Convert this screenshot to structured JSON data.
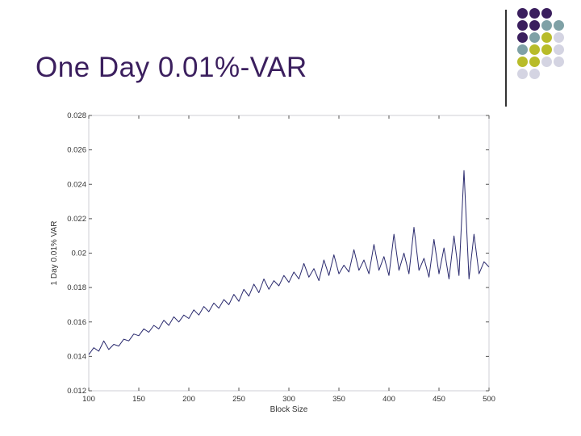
{
  "slide": {
    "title": "One Day 0.01%-VAR",
    "palette": [
      "#3b1f5e",
      "#7fa1a6",
      "#b8bc2a",
      "#d4d4e2"
    ]
  },
  "chart_data": {
    "type": "line",
    "xlabel": "Block Size",
    "ylabel": "1 Day 0.01% VAR",
    "xlim": [
      100,
      500
    ],
    "ylim": [
      0.012,
      0.028
    ],
    "xticks": [
      "100",
      "150",
      "200",
      "250",
      "300",
      "350",
      "400",
      "450",
      "500"
    ],
    "yticks": [
      "0.012",
      "0.014",
      "0.016",
      "0.018",
      "0.02",
      "0.022",
      "0.024",
      "0.026",
      "0.028"
    ],
    "grid": false,
    "line_color": "#2a2a6e",
    "series": [
      {
        "x": [
          100,
          105,
          110,
          115,
          120,
          125,
          130,
          135,
          140,
          145,
          150,
          155,
          160,
          165,
          170,
          175,
          180,
          185,
          190,
          195,
          200,
          205,
          210,
          215,
          220,
          225,
          230,
          235,
          240,
          245,
          250,
          255,
          260,
          265,
          270,
          275,
          280,
          285,
          290,
          295,
          300,
          305,
          310,
          315,
          320,
          325,
          330,
          335,
          340,
          345,
          350,
          355,
          360,
          365,
          370,
          375,
          380,
          385,
          390,
          395,
          400,
          405,
          410,
          415,
          420,
          425,
          430,
          435,
          440,
          445,
          450,
          455,
          460,
          465,
          470,
          475,
          480,
          485,
          490,
          495,
          500
        ],
        "values": [
          0.0141,
          0.0145,
          0.0143,
          0.0149,
          0.0144,
          0.0147,
          0.0146,
          0.015,
          0.0149,
          0.0153,
          0.0152,
          0.0156,
          0.0154,
          0.0158,
          0.0156,
          0.0161,
          0.0158,
          0.0163,
          0.016,
          0.0164,
          0.0162,
          0.0167,
          0.0164,
          0.0169,
          0.0166,
          0.0171,
          0.0168,
          0.0173,
          0.017,
          0.0176,
          0.0172,
          0.0179,
          0.0175,
          0.0182,
          0.0177,
          0.0185,
          0.0179,
          0.0184,
          0.0181,
          0.0187,
          0.0183,
          0.0189,
          0.0185,
          0.0194,
          0.0186,
          0.0191,
          0.0184,
          0.0196,
          0.0187,
          0.0199,
          0.0188,
          0.0193,
          0.0189,
          0.0202,
          0.019,
          0.0196,
          0.0188,
          0.0205,
          0.019,
          0.0198,
          0.0187,
          0.0211,
          0.019,
          0.02,
          0.0188,
          0.0215,
          0.019,
          0.0197,
          0.0186,
          0.0208,
          0.0188,
          0.0203,
          0.0185,
          0.021,
          0.0187,
          0.0248,
          0.0185,
          0.0211,
          0.0188,
          0.0195,
          0.0192
        ]
      }
    ]
  }
}
